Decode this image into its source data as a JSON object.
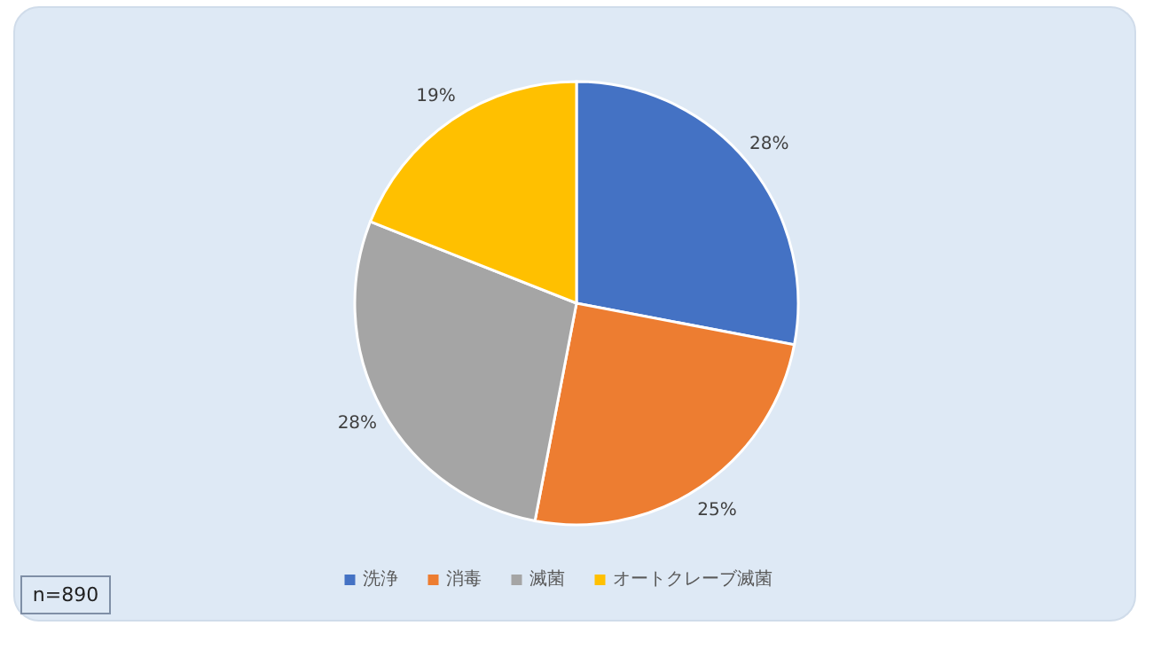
{
  "chart_data": {
    "type": "pie",
    "categories": [
      "洗浄",
      "消毒",
      "滅菌",
      "オートクレーブ滅菌"
    ],
    "values": [
      28,
      25,
      28,
      19
    ],
    "colors": [
      "#4472c4",
      "#ed7d31",
      "#a5a5a5",
      "#ffc000"
    ],
    "value_labels": [
      "28%",
      "25%",
      "28%",
      "19%"
    ],
    "legend": "bottom",
    "annotations": [
      "n=890"
    ]
  }
}
